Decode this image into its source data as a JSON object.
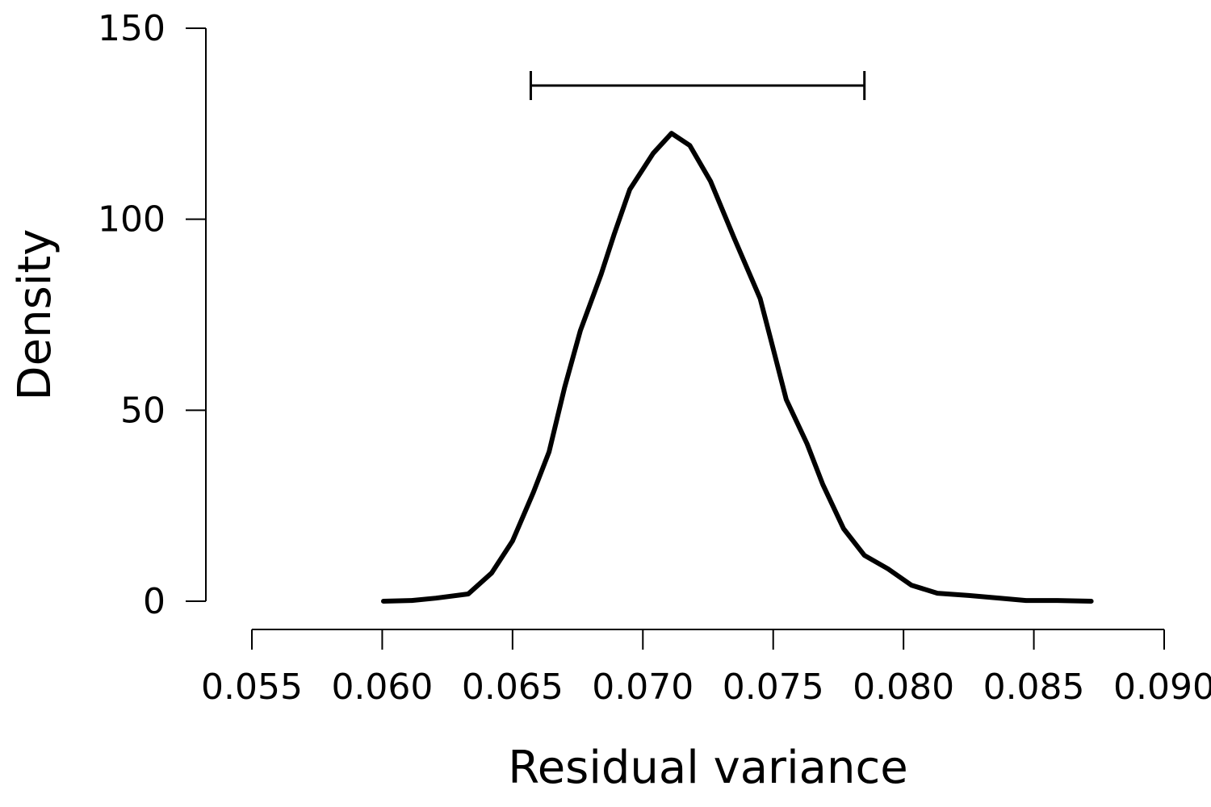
{
  "chart_data": {
    "type": "line",
    "xlabel": "Residual variance",
    "ylabel": "Density",
    "x": [
      0.06005,
      0.06113,
      0.06206,
      0.0633,
      0.0642,
      0.065,
      0.0658,
      0.0664,
      0.067,
      0.0676,
      0.0684,
      0.0689,
      0.0695,
      0.0704,
      0.0711,
      0.0718,
      0.0726,
      0.0735,
      0.0745,
      0.0749,
      0.0755,
      0.0763,
      0.0769,
      0.0777,
      0.0785,
      0.0794,
      0.0803,
      0.0813,
      0.0825,
      0.0837,
      0.0847,
      0.0859,
      0.0872
    ],
    "values": [
      0,
      0.2,
      0.8,
      1.9,
      7.4,
      15.8,
      28.5,
      39.1,
      56.0,
      70.8,
      85.6,
      96.1,
      107.8,
      117.3,
      122.5,
      119.3,
      109.9,
      95.1,
      79.2,
      68.7,
      52.8,
      41.2,
      30.6,
      19.0,
      12.0,
      8.5,
      4.2,
      2.1,
      1.5,
      0.8,
      0.2,
      0.2,
      0
    ],
    "color": "#000000",
    "interval": [
      0.0657,
      0.0785
    ],
    "interval_y": 135,
    "xlim": [
      0.055,
      0.09
    ],
    "xticks": [
      0.055,
      {
        "value": 0.06,
        "label": "0.060"
      },
      0.065,
      {
        "value": 0.07,
        "label": "0.070"
      },
      0.075,
      {
        "value": 0.08,
        "label": "0.080"
      },
      0.085,
      {
        "value": 0.09,
        "label": "0.090"
      }
    ],
    "ylim": [
      0,
      150
    ],
    "yticks": [
      0,
      50,
      100,
      150
    ]
  }
}
